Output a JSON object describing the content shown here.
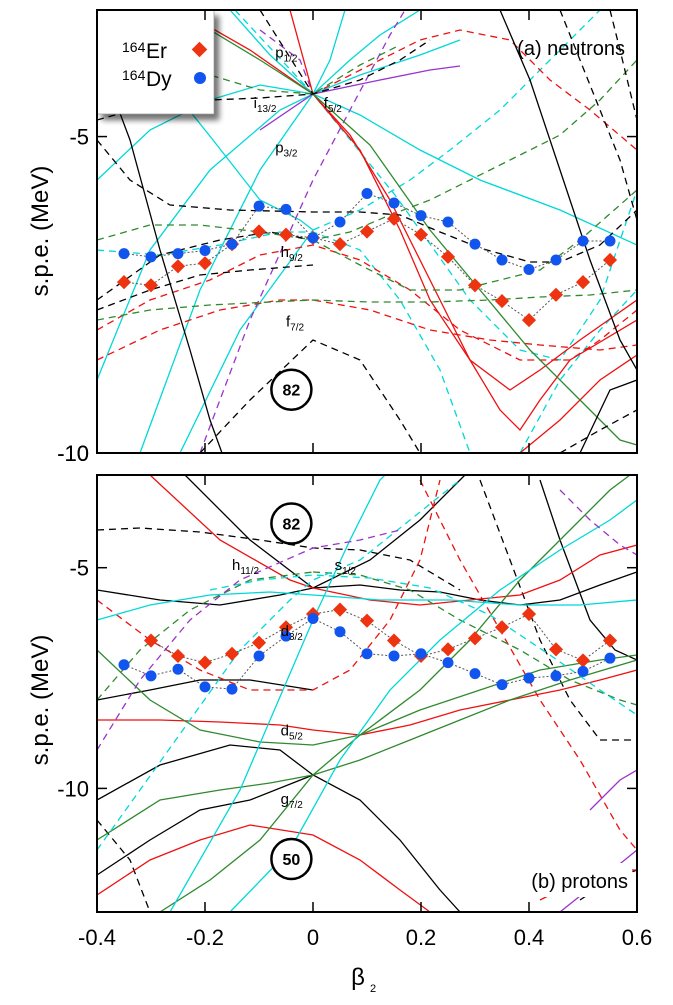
{
  "colors": {
    "black": "#000000",
    "red": "#ee1111",
    "green": "#2f8a2f",
    "cyan": "#00d8d8",
    "purple": "#9a33cc",
    "er_marker": "#ee3311",
    "dy_marker": "#1155ee"
  },
  "legend": {
    "er_mass": "164",
    "er_symbol": "Er",
    "dy_mass": "164",
    "dy_symbol": "Dy"
  },
  "xlabel": "β",
  "xlabel_sub": "2",
  "chart_data": [
    {
      "type": "line",
      "panel": "(a) neutrons",
      "ylabel": "s.p.e. (MeV)",
      "xlim": [
        -0.4,
        0.6
      ],
      "ylim": [
        -10,
        -3.0
      ],
      "yticks": [
        -5,
        -10
      ],
      "xticks": [
        -0.4,
        -0.2,
        0,
        0.2,
        0.4,
        0.6
      ],
      "xtick_labels": [
        "-0.4",
        "-0.2",
        "0",
        "0.2",
        "0.4",
        "0.6"
      ],
      "magic_number": "82",
      "magic_number_at": [
        -0.04,
        -9.0
      ],
      "level_labels": [
        {
          "base": "p",
          "sub": "1/2",
          "x": -0.07,
          "y": -3.75
        },
        {
          "base": "i",
          "sub": "13/2",
          "x": -0.11,
          "y": -4.55
        },
        {
          "base": "f",
          "sub": "5/2",
          "x": 0.02,
          "y": -4.55
        },
        {
          "base": "p",
          "sub": "3/2",
          "x": -0.07,
          "y": -5.25
        },
        {
          "base": "h",
          "sub": "9/2",
          "x": -0.06,
          "y": -6.9
        },
        {
          "base": "f",
          "sub": "7/2",
          "x": -0.05,
          "y": -8.0
        }
      ],
      "series": [
        {
          "marker": "diamond",
          "color_key": "er_marker",
          "points": [
            [
              -0.35,
              -7.3
            ],
            [
              -0.3,
              -7.35
            ],
            [
              -0.25,
              -7.05
            ],
            [
              -0.2,
              -7.0
            ],
            [
              -0.15,
              -6.7
            ],
            [
              -0.1,
              -6.5
            ],
            [
              -0.05,
              -6.55
            ],
            [
              0.0,
              -6.6
            ],
            [
              0.05,
              -6.7
            ],
            [
              0.1,
              -6.5
            ],
            [
              0.15,
              -6.3
            ],
            [
              0.2,
              -6.55
            ],
            [
              0.25,
              -6.9
            ],
            [
              0.3,
              -7.35
            ],
            [
              0.35,
              -7.6
            ],
            [
              0.4,
              -7.9
            ],
            [
              0.45,
              -7.5
            ],
            [
              0.5,
              -7.3
            ],
            [
              0.55,
              -6.95
            ]
          ]
        },
        {
          "marker": "circle",
          "color_key": "dy_marker",
          "points": [
            [
              -0.35,
              -6.85
            ],
            [
              -0.3,
              -6.9
            ],
            [
              -0.25,
              -6.85
            ],
            [
              -0.2,
              -6.8
            ],
            [
              -0.15,
              -6.7
            ],
            [
              -0.1,
              -6.1
            ],
            [
              -0.05,
              -6.15
            ],
            [
              0.0,
              -6.6
            ],
            [
              0.05,
              -6.35
            ],
            [
              0.1,
              -5.9
            ],
            [
              0.15,
              -6.05
            ],
            [
              0.2,
              -6.25
            ],
            [
              0.25,
              -6.35
            ],
            [
              0.3,
              -6.7
            ],
            [
              0.35,
              -6.95
            ],
            [
              0.4,
              -7.1
            ],
            [
              0.45,
              -6.95
            ],
            [
              0.5,
              -6.65
            ],
            [
              0.55,
              -6.65
            ]
          ]
        }
      ]
    },
    {
      "type": "line",
      "panel": "(b) protons",
      "ylabel": "s.p.e. (MeV)",
      "xlim": [
        -0.4,
        0.6
      ],
      "ylim": [
        -12.8,
        -2.9
      ],
      "yticks": [
        -5,
        -10
      ],
      "xticks": [
        -0.4,
        -0.2,
        0,
        0.2,
        0.4,
        0.6
      ],
      "xtick_labels": [
        "-0.4",
        "-0.2",
        "0",
        "0.2",
        "0.4",
        "0.6"
      ],
      "magic_numbers": [
        {
          "label": "82",
          "at": [
            -0.04,
            -4.0
          ]
        },
        {
          "label": "50",
          "at": [
            -0.04,
            -11.6
          ]
        }
      ],
      "level_labels": [
        {
          "base": "h",
          "sub": "11/2",
          "x": -0.15,
          "y": -5.05
        },
        {
          "base": "s",
          "sub": "1/2",
          "x": 0.04,
          "y": -5.05
        },
        {
          "base": "d",
          "sub": "3/2",
          "x": -0.06,
          "y": -6.55
        },
        {
          "base": "d",
          "sub": "5/2",
          "x": -0.06,
          "y": -8.8
        },
        {
          "base": "g",
          "sub": "7/2",
          "x": -0.06,
          "y": -10.35
        }
      ],
      "series": [
        {
          "marker": "diamond",
          "color_key": "er_marker",
          "points": [
            [
              -0.3,
              -6.65
            ],
            [
              -0.25,
              -7.0
            ],
            [
              -0.2,
              -7.15
            ],
            [
              -0.15,
              -6.95
            ],
            [
              -0.1,
              -6.7
            ],
            [
              -0.05,
              -6.35
            ],
            [
              0.0,
              -6.05
            ],
            [
              0.05,
              -5.95
            ],
            [
              0.1,
              -6.2
            ],
            [
              0.15,
              -6.65
            ],
            [
              0.2,
              -7.0
            ],
            [
              0.25,
              -6.85
            ],
            [
              0.3,
              -6.6
            ],
            [
              0.35,
              -6.35
            ],
            [
              0.4,
              -6.05
            ],
            [
              0.45,
              -6.85
            ],
            [
              0.5,
              -7.1
            ],
            [
              0.55,
              -6.65
            ]
          ]
        },
        {
          "marker": "circle",
          "color_key": "dy_marker",
          "points": [
            [
              -0.35,
              -7.2
            ],
            [
              -0.3,
              -7.45
            ],
            [
              -0.25,
              -7.3
            ],
            [
              -0.2,
              -7.7
            ],
            [
              -0.15,
              -7.75
            ],
            [
              -0.1,
              -7.0
            ],
            [
              -0.05,
              -6.55
            ],
            [
              0.0,
              -6.15
            ],
            [
              0.05,
              -6.45
            ],
            [
              0.1,
              -6.95
            ],
            [
              0.15,
              -7.0
            ],
            [
              0.2,
              -6.95
            ],
            [
              0.25,
              -7.15
            ],
            [
              0.3,
              -7.4
            ],
            [
              0.35,
              -7.65
            ],
            [
              0.4,
              -7.5
            ],
            [
              0.45,
              -7.45
            ],
            [
              0.5,
              -7.35
            ],
            [
              0.55,
              -7.05
            ]
          ]
        }
      ]
    }
  ]
}
